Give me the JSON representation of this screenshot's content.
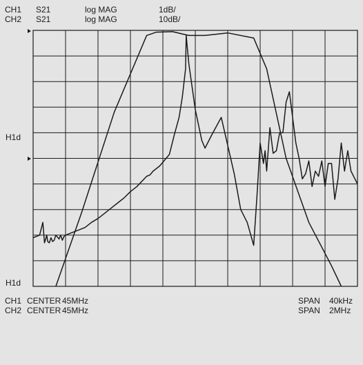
{
  "header": {
    "rows": [
      {
        "channel": "CH1",
        "param": "S21",
        "format": "log MAG",
        "scale": "1dB/"
      },
      {
        "channel": "CH2",
        "param": "S21",
        "format": "log MAG",
        "scale": "10dB/"
      }
    ]
  },
  "side_labels": {
    "upper": "H1d",
    "lower": "H1d"
  },
  "footer": {
    "rows": [
      {
        "channel": "CH1",
        "center_label": "CENTER",
        "center_value": "45MHz",
        "span_label": "SPAN",
        "span_value": "40kHz"
      },
      {
        "channel": "CH2",
        "center_label": "CENTER",
        "center_value": "45MHz",
        "span_label": "SPAN",
        "span_value": "2MHz"
      }
    ]
  },
  "colors": {
    "background": "#e4e4e4",
    "grid": "#1a1a1a",
    "trace": "#1a1a1a"
  },
  "chart_data": {
    "type": "line",
    "grid": {
      "x_divisions": 10,
      "y_divisions": 10,
      "visible": true
    },
    "xlim": [
      0,
      10
    ],
    "ylim": [
      0,
      10
    ],
    "series": [
      {
        "x": [
          0.7,
          1.5,
          2.5,
          3.5,
          3.8,
          4.3,
          4.8,
          5.3,
          6.0,
          6.8,
          7.2,
          7.8,
          8.5,
          9.2,
          9.5
        ],
        "values": [
          0,
          2.9,
          6.8,
          9.8,
          9.93,
          9.95,
          9.8,
          9.8,
          9.9,
          9.7,
          8.5,
          5.0,
          2.5,
          0.8,
          0
        ]
      },
      {
        "x": [
          0,
          0.2,
          0.3,
          0.35,
          0.4,
          0.42,
          0.45,
          0.5,
          0.55,
          0.6,
          0.65,
          0.7,
          0.8,
          0.85,
          0.9,
          0.95,
          1.0,
          1.2,
          1.4,
          1.6,
          1.8,
          2.0,
          2.2,
          2.4,
          2.6,
          2.8,
          3.0,
          3.2,
          3.5,
          3.6,
          3.7,
          3.9,
          4.0,
          4.2,
          4.35,
          4.5,
          4.6,
          4.7,
          4.72,
          4.8,
          5.0,
          5.2,
          5.3,
          5.5,
          5.8,
          6.0,
          6.2,
          6.4,
          6.6,
          6.8,
          6.9,
          7.0,
          7.1,
          7.15,
          7.2,
          7.3,
          7.4,
          7.5,
          7.6,
          7.7,
          7.8,
          7.9,
          8.0,
          8.1,
          8.2,
          8.3,
          8.4,
          8.5,
          8.6,
          8.7,
          8.8,
          8.9,
          9.0,
          9.1,
          9.2,
          9.3,
          9.4,
          9.5,
          9.6,
          9.7,
          9.8,
          10.0
        ],
        "values": [
          1.9,
          2.0,
          2.5,
          1.7,
          1.9,
          2.0,
          1.75,
          1.7,
          1.9,
          1.75,
          1.8,
          2.0,
          1.85,
          2.0,
          1.8,
          1.95,
          2.0,
          2.1,
          2.2,
          2.3,
          2.5,
          2.65,
          2.85,
          3.05,
          3.25,
          3.45,
          3.7,
          3.9,
          4.3,
          4.35,
          4.5,
          4.7,
          4.85,
          5.15,
          5.9,
          6.6,
          7.4,
          8.5,
          9.8,
          8.7,
          6.9,
          5.7,
          5.4,
          5.9,
          6.6,
          5.5,
          4.4,
          3.0,
          2.5,
          1.6,
          3.5,
          5.6,
          4.8,
          5.3,
          4.5,
          6.2,
          5.2,
          5.3,
          6.0,
          6.0,
          7.2,
          7.6,
          6.6,
          5.6,
          5.0,
          4.2,
          4.4,
          4.9,
          3.9,
          4.5,
          4.3,
          4.9,
          3.9,
          4.8,
          4.8,
          3.4,
          4.2,
          5.6,
          4.5,
          5.3,
          4.5,
          4.0
        ]
      }
    ]
  }
}
